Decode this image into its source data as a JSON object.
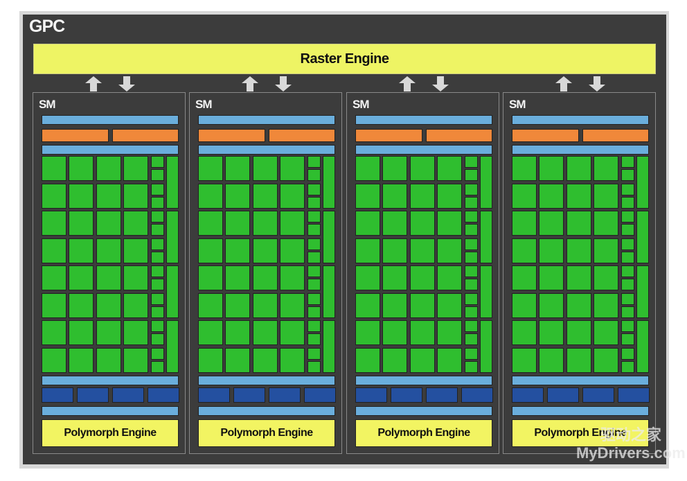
{
  "title": "GPC",
  "raster_engine": "Raster Engine",
  "sms": [
    {
      "label": "SM",
      "polymorph": "Polymorph Engine"
    },
    {
      "label": "SM",
      "polymorph": "Polymorph Engine"
    },
    {
      "label": "SM",
      "polymorph": "Polymorph Engine"
    },
    {
      "label": "SM",
      "polymorph": "Polymorph Engine"
    }
  ],
  "colors": {
    "panel": "#3c3c3c",
    "raster": "#eef464",
    "cache_bar": "#6aaedc",
    "scheduler": "#f0883a",
    "core": "#2fbe2f",
    "tex_unit": "#2450a0",
    "polymorph": "#f2f462"
  },
  "watermark": {
    "cn": "驱动之家",
    "en": "MyDrivers.com"
  }
}
